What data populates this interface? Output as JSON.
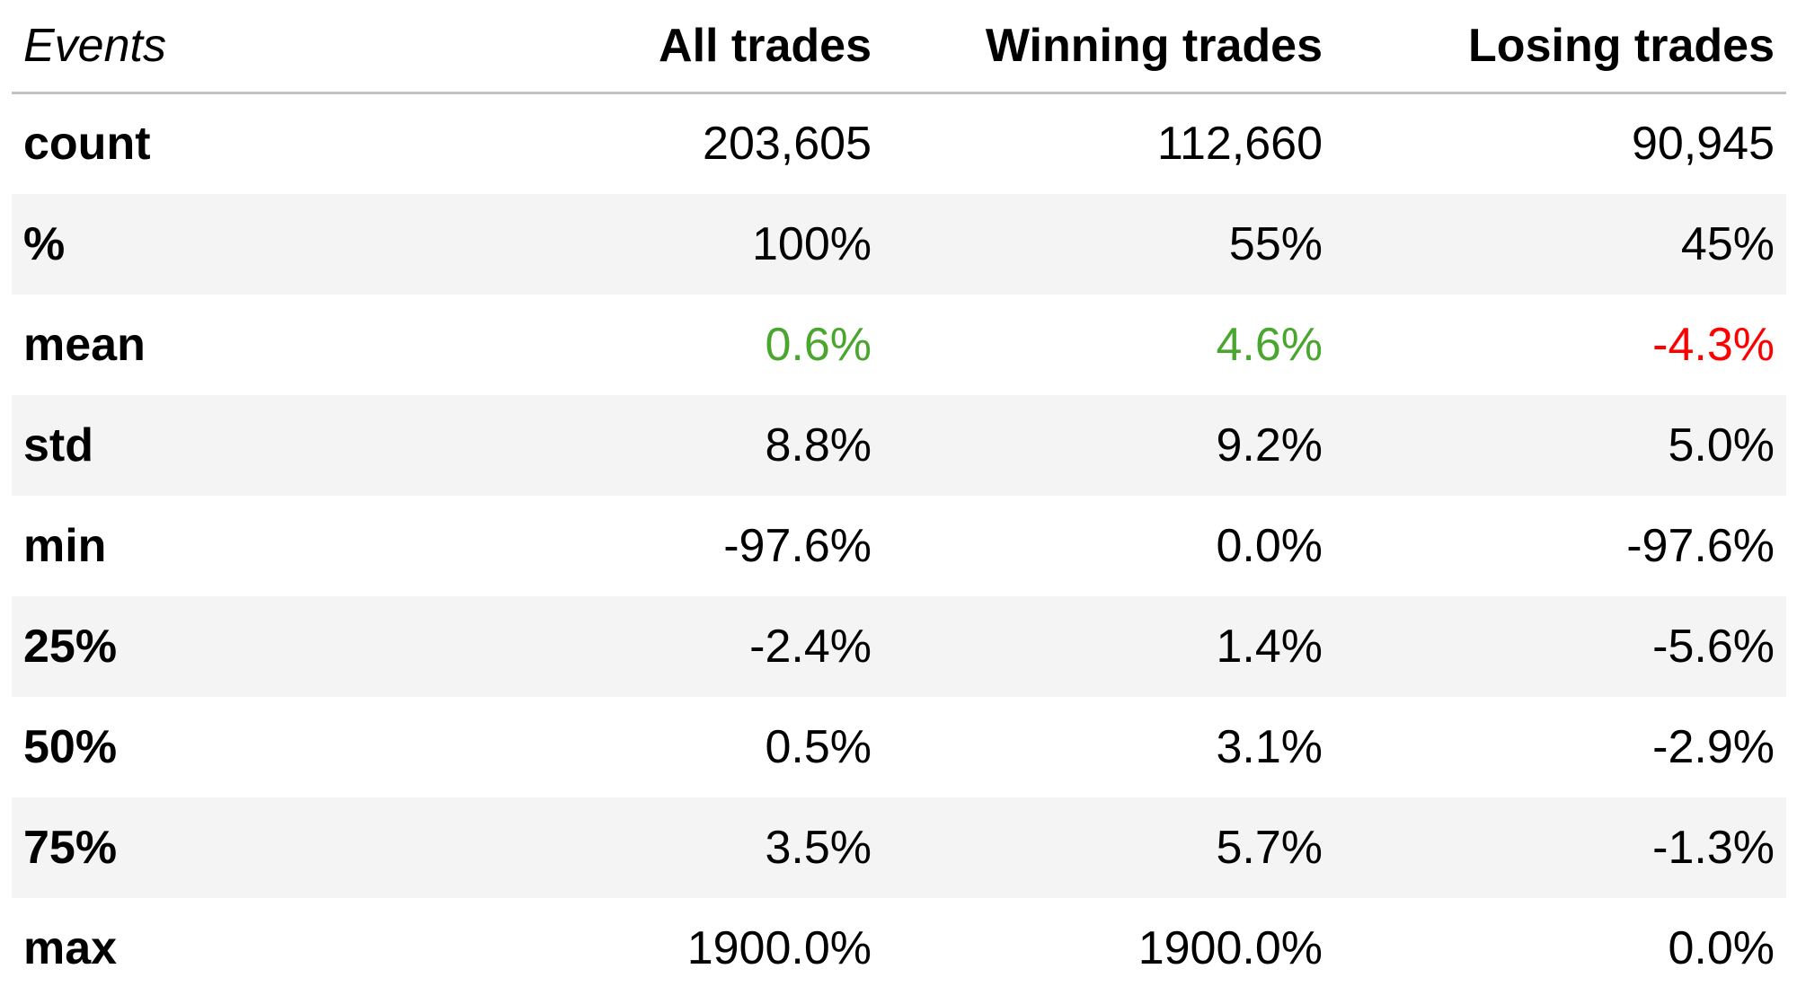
{
  "header": {
    "events": "Events",
    "all": "All trades",
    "winning": "Winning trades",
    "losing": "Losing trades"
  },
  "rows": [
    {
      "label": "count",
      "all": "203,605",
      "winning": "112,660",
      "losing": "90,945"
    },
    {
      "label": "%",
      "all": "100%",
      "winning": "55%",
      "losing": "45%"
    },
    {
      "label": "mean",
      "all": "0.6%",
      "winning": "4.6%",
      "losing": "-4.3%"
    },
    {
      "label": "std",
      "all": "8.8%",
      "winning": "9.2%",
      "losing": "5.0%"
    },
    {
      "label": "min",
      "all": "-97.6%",
      "winning": "0.0%",
      "losing": "-97.6%"
    },
    {
      "label": "25%",
      "all": "-2.4%",
      "winning": "1.4%",
      "losing": "-5.6%"
    },
    {
      "label": "50%",
      "all": "0.5%",
      "winning": "3.1%",
      "losing": "-2.9%"
    },
    {
      "label": "75%",
      "all": "3.5%",
      "winning": "5.7%",
      "losing": "-1.3%"
    },
    {
      "label": "max",
      "all": "1900.0%",
      "winning": "1900.0%",
      "losing": "0.0%"
    }
  ],
  "colors": {
    "positive": "#4aa62f",
    "negative": "#ff0000",
    "stripe": "#f4f4f4",
    "header_rule": "#c2c2c2"
  }
}
